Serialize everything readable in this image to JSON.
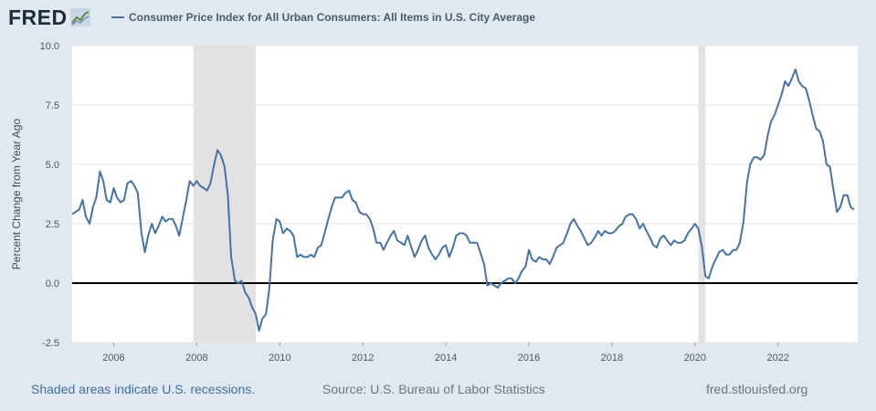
{
  "logo": {
    "text": "FRED",
    "icon": "line-graph-icon"
  },
  "footer": {
    "recession_note": "Shaded areas indicate U.S. recessions.",
    "source": "Source: U.S. Bureau of Labor Statistics",
    "site": "fred.stlouisfed.org"
  },
  "colors": {
    "series": "#4572a7",
    "recession": "#e2e2e2",
    "background": "#e1e9f0",
    "plot": "#ffffff",
    "zero_line": "#000000"
  },
  "chart_data": {
    "type": "line",
    "title": "",
    "xlabel": "",
    "ylabel": "Percent Change from Year Ago",
    "x_range": [
      2005.0,
      2023.92
    ],
    "ylim": [
      -2.5,
      10.0
    ],
    "yticks": [
      10.0,
      7.5,
      5.0,
      2.5,
      0.0,
      -2.5
    ],
    "ytick_labels": [
      "10.0",
      "7.5",
      "5.0",
      "2.5",
      "0.0",
      "-2.5"
    ],
    "xticks": [
      2006,
      2008,
      2010,
      2012,
      2014,
      2016,
      2018,
      2020,
      2022
    ],
    "xtick_labels": [
      "2006",
      "2008",
      "2010",
      "2012",
      "2014",
      "2016",
      "2018",
      "2020",
      "2022"
    ],
    "grid": "horizontal",
    "legend_position": "top-left",
    "reference_line": 0.0,
    "recessions": [
      {
        "start": 2007.92,
        "end": 2009.42
      },
      {
        "start": 2020.08,
        "end": 2020.25
      }
    ],
    "series": [
      {
        "name": "Consumer Price Index for All Urban Consumers: All Items in U.S. City Average",
        "points": [
          [
            2005.0,
            2.9
          ],
          [
            2005.08,
            3.0
          ],
          [
            2005.17,
            3.1
          ],
          [
            2005.25,
            3.5
          ],
          [
            2005.33,
            2.8
          ],
          [
            2005.42,
            2.5
          ],
          [
            2005.5,
            3.2
          ],
          [
            2005.58,
            3.6
          ],
          [
            2005.67,
            4.7
          ],
          [
            2005.75,
            4.3
          ],
          [
            2005.83,
            3.5
          ],
          [
            2005.92,
            3.4
          ],
          [
            2006.0,
            4.0
          ],
          [
            2006.08,
            3.6
          ],
          [
            2006.17,
            3.4
          ],
          [
            2006.25,
            3.5
          ],
          [
            2006.33,
            4.2
          ],
          [
            2006.42,
            4.3
          ],
          [
            2006.5,
            4.1
          ],
          [
            2006.58,
            3.8
          ],
          [
            2006.67,
            2.1
          ],
          [
            2006.75,
            1.3
          ],
          [
            2006.83,
            2.0
          ],
          [
            2006.92,
            2.5
          ],
          [
            2007.0,
            2.1
          ],
          [
            2007.08,
            2.4
          ],
          [
            2007.17,
            2.8
          ],
          [
            2007.25,
            2.6
          ],
          [
            2007.33,
            2.7
          ],
          [
            2007.42,
            2.7
          ],
          [
            2007.5,
            2.4
          ],
          [
            2007.58,
            2.0
          ],
          [
            2007.67,
            2.8
          ],
          [
            2007.75,
            3.5
          ],
          [
            2007.83,
            4.3
          ],
          [
            2007.92,
            4.1
          ],
          [
            2008.0,
            4.3
          ],
          [
            2008.08,
            4.1
          ],
          [
            2008.17,
            4.0
          ],
          [
            2008.25,
            3.9
          ],
          [
            2008.33,
            4.2
          ],
          [
            2008.42,
            5.0
          ],
          [
            2008.5,
            5.6
          ],
          [
            2008.58,
            5.4
          ],
          [
            2008.67,
            4.9
          ],
          [
            2008.75,
            3.7
          ],
          [
            2008.83,
            1.1
          ],
          [
            2008.92,
            0.1
          ],
          [
            2009.0,
            0.0
          ],
          [
            2009.08,
            0.1
          ],
          [
            2009.17,
            -0.4
          ],
          [
            2009.25,
            -0.6
          ],
          [
            2009.33,
            -1.0
          ],
          [
            2009.42,
            -1.3
          ],
          [
            2009.5,
            -2.0
          ],
          [
            2009.58,
            -1.5
          ],
          [
            2009.67,
            -1.3
          ],
          [
            2009.75,
            -0.2
          ],
          [
            2009.83,
            1.8
          ],
          [
            2009.92,
            2.7
          ],
          [
            2010.0,
            2.6
          ],
          [
            2010.08,
            2.1
          ],
          [
            2010.17,
            2.3
          ],
          [
            2010.25,
            2.2
          ],
          [
            2010.33,
            2.0
          ],
          [
            2010.42,
            1.1
          ],
          [
            2010.5,
            1.2
          ],
          [
            2010.58,
            1.1
          ],
          [
            2010.67,
            1.1
          ],
          [
            2010.75,
            1.2
          ],
          [
            2010.83,
            1.1
          ],
          [
            2010.92,
            1.5
          ],
          [
            2011.0,
            1.6
          ],
          [
            2011.08,
            2.1
          ],
          [
            2011.17,
            2.7
          ],
          [
            2011.25,
            3.2
          ],
          [
            2011.33,
            3.6
          ],
          [
            2011.42,
            3.6
          ],
          [
            2011.5,
            3.6
          ],
          [
            2011.58,
            3.8
          ],
          [
            2011.67,
            3.9
          ],
          [
            2011.75,
            3.5
          ],
          [
            2011.83,
            3.4
          ],
          [
            2011.92,
            3.0
          ],
          [
            2012.0,
            2.9
          ],
          [
            2012.08,
            2.9
          ],
          [
            2012.17,
            2.7
          ],
          [
            2012.25,
            2.3
          ],
          [
            2012.33,
            1.7
          ],
          [
            2012.42,
            1.7
          ],
          [
            2012.5,
            1.4
          ],
          [
            2012.58,
            1.7
          ],
          [
            2012.67,
            2.0
          ],
          [
            2012.75,
            2.2
          ],
          [
            2012.83,
            1.8
          ],
          [
            2012.92,
            1.7
          ],
          [
            2013.0,
            1.6
          ],
          [
            2013.08,
            2.0
          ],
          [
            2013.17,
            1.5
          ],
          [
            2013.25,
            1.1
          ],
          [
            2013.33,
            1.4
          ],
          [
            2013.42,
            1.8
          ],
          [
            2013.5,
            2.0
          ],
          [
            2013.58,
            1.5
          ],
          [
            2013.67,
            1.2
          ],
          [
            2013.75,
            1.0
          ],
          [
            2013.83,
            1.2
          ],
          [
            2013.92,
            1.5
          ],
          [
            2014.0,
            1.6
          ],
          [
            2014.08,
            1.1
          ],
          [
            2014.17,
            1.5
          ],
          [
            2014.25,
            2.0
          ],
          [
            2014.33,
            2.1
          ],
          [
            2014.42,
            2.1
          ],
          [
            2014.5,
            2.0
          ],
          [
            2014.58,
            1.7
          ],
          [
            2014.67,
            1.7
          ],
          [
            2014.75,
            1.7
          ],
          [
            2014.83,
            1.3
          ],
          [
            2014.92,
            0.8
          ],
          [
            2015.0,
            -0.1
          ],
          [
            2015.08,
            0.0
          ],
          [
            2015.17,
            -0.1
          ],
          [
            2015.25,
            -0.2
          ],
          [
            2015.33,
            0.0
          ],
          [
            2015.42,
            0.1
          ],
          [
            2015.5,
            0.2
          ],
          [
            2015.58,
            0.2
          ],
          [
            2015.67,
            0.0
          ],
          [
            2015.75,
            0.2
          ],
          [
            2015.83,
            0.5
          ],
          [
            2015.92,
            0.7
          ],
          [
            2016.0,
            1.4
          ],
          [
            2016.08,
            1.0
          ],
          [
            2016.17,
            0.9
          ],
          [
            2016.25,
            1.1
          ],
          [
            2016.33,
            1.0
          ],
          [
            2016.42,
            1.0
          ],
          [
            2016.5,
            0.8
          ],
          [
            2016.58,
            1.1
          ],
          [
            2016.67,
            1.5
          ],
          [
            2016.75,
            1.6
          ],
          [
            2016.83,
            1.7
          ],
          [
            2016.92,
            2.1
          ],
          [
            2017.0,
            2.5
          ],
          [
            2017.08,
            2.7
          ],
          [
            2017.17,
            2.4
          ],
          [
            2017.25,
            2.2
          ],
          [
            2017.33,
            1.9
          ],
          [
            2017.42,
            1.6
          ],
          [
            2017.5,
            1.7
          ],
          [
            2017.58,
            1.9
          ],
          [
            2017.67,
            2.2
          ],
          [
            2017.75,
            2.0
          ],
          [
            2017.83,
            2.2
          ],
          [
            2017.92,
            2.1
          ],
          [
            2018.0,
            2.1
          ],
          [
            2018.08,
            2.2
          ],
          [
            2018.17,
            2.4
          ],
          [
            2018.25,
            2.5
          ],
          [
            2018.33,
            2.8
          ],
          [
            2018.42,
            2.9
          ],
          [
            2018.5,
            2.9
          ],
          [
            2018.58,
            2.7
          ],
          [
            2018.67,
            2.3
          ],
          [
            2018.75,
            2.5
          ],
          [
            2018.83,
            2.2
          ],
          [
            2018.92,
            1.9
          ],
          [
            2019.0,
            1.6
          ],
          [
            2019.08,
            1.5
          ],
          [
            2019.17,
            1.9
          ],
          [
            2019.25,
            2.0
          ],
          [
            2019.33,
            1.8
          ],
          [
            2019.42,
            1.6
          ],
          [
            2019.5,
            1.8
          ],
          [
            2019.58,
            1.7
          ],
          [
            2019.67,
            1.7
          ],
          [
            2019.75,
            1.8
          ],
          [
            2019.83,
            2.1
          ],
          [
            2019.92,
            2.3
          ],
          [
            2020.0,
            2.5
          ],
          [
            2020.08,
            2.3
          ],
          [
            2020.17,
            1.5
          ],
          [
            2020.25,
            0.3
          ],
          [
            2020.33,
            0.2
          ],
          [
            2020.42,
            0.7
          ],
          [
            2020.5,
            1.0
          ],
          [
            2020.58,
            1.3
          ],
          [
            2020.67,
            1.4
          ],
          [
            2020.75,
            1.2
          ],
          [
            2020.83,
            1.2
          ],
          [
            2020.92,
            1.4
          ],
          [
            2021.0,
            1.4
          ],
          [
            2021.08,
            1.7
          ],
          [
            2021.17,
            2.6
          ],
          [
            2021.25,
            4.2
          ],
          [
            2021.33,
            5.0
          ],
          [
            2021.42,
            5.3
          ],
          [
            2021.5,
            5.3
          ],
          [
            2021.58,
            5.2
          ],
          [
            2021.67,
            5.4
          ],
          [
            2021.75,
            6.2
          ],
          [
            2021.83,
            6.8
          ],
          [
            2021.92,
            7.1
          ],
          [
            2022.0,
            7.5
          ],
          [
            2022.08,
            7.9
          ],
          [
            2022.17,
            8.5
          ],
          [
            2022.25,
            8.3
          ],
          [
            2022.33,
            8.6
          ],
          [
            2022.42,
            9.0
          ],
          [
            2022.5,
            8.5
          ],
          [
            2022.58,
            8.3
          ],
          [
            2022.67,
            8.2
          ],
          [
            2022.75,
            7.7
          ],
          [
            2022.83,
            7.1
          ],
          [
            2022.92,
            6.5
          ],
          [
            2023.0,
            6.4
          ],
          [
            2023.08,
            6.0
          ],
          [
            2023.17,
            5.0
          ],
          [
            2023.25,
            4.9
          ],
          [
            2023.33,
            4.0
          ],
          [
            2023.42,
            3.0
          ],
          [
            2023.5,
            3.2
          ],
          [
            2023.58,
            3.7
          ],
          [
            2023.67,
            3.7
          ],
          [
            2023.75,
            3.2
          ],
          [
            2023.83,
            3.1
          ]
        ]
      }
    ]
  }
}
